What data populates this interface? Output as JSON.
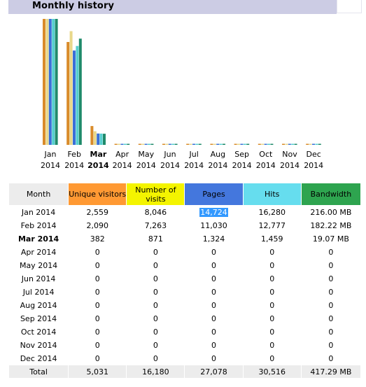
{
  "section": {
    "title": "Monthly history"
  },
  "colors": {
    "unique_visitors": "#ff9933",
    "visits": "#f4f400",
    "pages": "#4477dd",
    "hits": "#66ddee",
    "bandwidth": "#2ea44f"
  },
  "chart_data": {
    "type": "bar",
    "categories": [
      [
        "Jan",
        "2014"
      ],
      [
        "Feb",
        "2014"
      ],
      [
        "Mar",
        "2014"
      ],
      [
        "Apr",
        "2014"
      ],
      [
        "May",
        "2014"
      ],
      [
        "Jun",
        "2014"
      ],
      [
        "Jul",
        "2014"
      ],
      [
        "Aug",
        "2014"
      ],
      [
        "Sep",
        "2014"
      ],
      [
        "Oct",
        "2014"
      ],
      [
        "Nov",
        "2014"
      ],
      [
        "Dec",
        "2014"
      ]
    ],
    "current_index": 2,
    "series": [
      {
        "name": "Unique visitors",
        "values": [
          2559,
          2090,
          382,
          0,
          0,
          0,
          0,
          0,
          0,
          0,
          0,
          0
        ],
        "color": "#d98b2a"
      },
      {
        "name": "Number of visits",
        "values": [
          8046,
          7263,
          871,
          0,
          0,
          0,
          0,
          0,
          0,
          0,
          0,
          0
        ],
        "color": "#e8d88a"
      },
      {
        "name": "Pages",
        "values": [
          14724,
          11030,
          1324,
          0,
          0,
          0,
          0,
          0,
          0,
          0,
          0,
          0
        ],
        "color": "#3a6fd8"
      },
      {
        "name": "Hits",
        "values": [
          16280,
          12777,
          1459,
          0,
          0,
          0,
          0,
          0,
          0,
          0,
          0,
          0
        ],
        "color": "#55cfcf"
      },
      {
        "name": "Bandwidth",
        "values": [
          216.0,
          182.22,
          19.07,
          0,
          0,
          0,
          0,
          0,
          0,
          0,
          0,
          0
        ],
        "color": "#1f8a6a"
      }
    ]
  },
  "table": {
    "headers": {
      "month": "Month",
      "unique_visitors": "Unique visitors",
      "visits": "Number of visits",
      "pages": "Pages",
      "hits": "Hits",
      "bandwidth": "Bandwidth"
    },
    "rows": [
      {
        "month": "Jan 2014",
        "unique": "2,559",
        "visits": "8,046",
        "pages": "14,724",
        "hits": "16,280",
        "bandwidth": "216.00 MB"
      },
      {
        "month": "Feb 2014",
        "unique": "2,090",
        "visits": "7,263",
        "pages": "11,030",
        "hits": "12,777",
        "bandwidth": "182.22 MB"
      },
      {
        "month": "Mar 2014",
        "unique": "382",
        "visits": "871",
        "pages": "1,324",
        "hits": "1,459",
        "bandwidth": "19.07 MB"
      },
      {
        "month": "Apr 2014",
        "unique": "0",
        "visits": "0",
        "pages": "0",
        "hits": "0",
        "bandwidth": "0"
      },
      {
        "month": "May 2014",
        "unique": "0",
        "visits": "0",
        "pages": "0",
        "hits": "0",
        "bandwidth": "0"
      },
      {
        "month": "Jun 2014",
        "unique": "0",
        "visits": "0",
        "pages": "0",
        "hits": "0",
        "bandwidth": "0"
      },
      {
        "month": "Jul 2014",
        "unique": "0",
        "visits": "0",
        "pages": "0",
        "hits": "0",
        "bandwidth": "0"
      },
      {
        "month": "Aug 2014",
        "unique": "0",
        "visits": "0",
        "pages": "0",
        "hits": "0",
        "bandwidth": "0"
      },
      {
        "month": "Sep 2014",
        "unique": "0",
        "visits": "0",
        "pages": "0",
        "hits": "0",
        "bandwidth": "0"
      },
      {
        "month": "Oct 2014",
        "unique": "0",
        "visits": "0",
        "pages": "0",
        "hits": "0",
        "bandwidth": "0"
      },
      {
        "month": "Nov 2014",
        "unique": "0",
        "visits": "0",
        "pages": "0",
        "hits": "0",
        "bandwidth": "0"
      },
      {
        "month": "Dec 2014",
        "unique": "0",
        "visits": "0",
        "pages": "0",
        "hits": "0",
        "bandwidth": "0"
      }
    ],
    "current_row": 2,
    "selected_cell": {
      "row": 0,
      "column": "pages"
    },
    "total": {
      "label": "Total",
      "unique": "5,031",
      "visits": "16,180",
      "pages": "27,078",
      "hits": "30,516",
      "bandwidth": "417.29 MB"
    }
  }
}
